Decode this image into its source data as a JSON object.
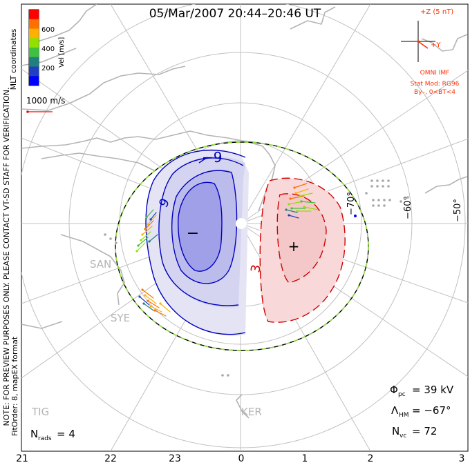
{
  "title": "05/Mar/2007  20:44–20:46  UT",
  "side_notes": {
    "mlt_coordinates": "MLT coordinates",
    "preview_notice": "NOTE: FOR PREVIEW PURPOSES ONLY. PLEASE CONTACT VT-SD STAFF FOR VERIFICATION.",
    "fit_order": "FitOrder: 8, mapEX format"
  },
  "velocity_scale": {
    "label": "Vel [m/s]",
    "ticks": [
      "600",
      "400",
      "200"
    ],
    "colors": [
      "#ff0000",
      "#ff7000",
      "#ffb000",
      "#90e000",
      "#40c040",
      "#208080",
      "#2040c0",
      "#0000ff"
    ],
    "reference_vector": "1000 m/s"
  },
  "imf": {
    "bz_label": "+Z (5 nT)",
    "by_label": "+Y",
    "source": "OMNI IMF",
    "stat_mod": "Stat Mod: RG96",
    "condition": "By–, 0<BT<4",
    "accent": "#ff3000"
  },
  "latitude_labels": [
    "−70°",
    "−60°",
    "−50°"
  ],
  "radar_labels": [
    "SAN",
    "SYE",
    "TIG",
    "KER"
  ],
  "contour_labels": {
    "negative": "−9",
    "negative_inner": "9",
    "positive": "3"
  },
  "cell_markers": {
    "min": "−",
    "max": "+"
  },
  "stats": {
    "phi_pc_symbol": "Φ",
    "phi_pc_sub": "pc",
    "phi_pc_value": "= 39 kV",
    "lambda_hm_symbol": "Λ",
    "lambda_hm_sub": "HM",
    "lambda_hm_value": "= −67°",
    "n_vc_symbol": "N",
    "n_vc_sub": "vc",
    "n_vc_value": "= 72",
    "n_rads_symbol": "N",
    "n_rads_sub": "rads",
    "n_rads_value": "= 4"
  },
  "mlt_axis": [
    "21",
    "22",
    "23",
    "0",
    "1",
    "2",
    "3"
  ],
  "colors": {
    "negative_contour": "#0000c0",
    "negative_fill": "#c8c8f0",
    "positive_contour": "#d00000",
    "positive_fill": "#f8d8d8",
    "boundary_green": "#90e040",
    "grid": "#c0c0c0",
    "coast": "#b4b4b4",
    "stat_text": "#ff3000"
  }
}
